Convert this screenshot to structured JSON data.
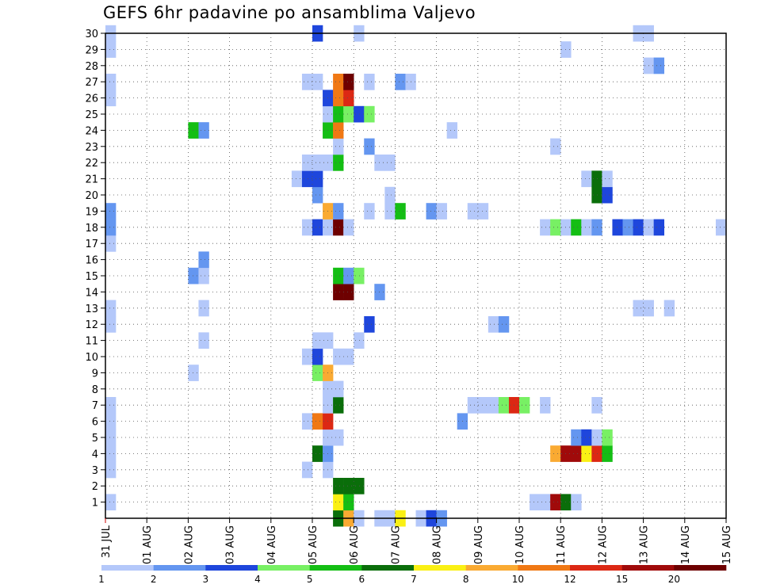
{
  "title": "GEFS 6hr padavine po ansamblima Valjevo",
  "chart_data": {
    "type": "heatmap",
    "title": "GEFS 6hr padavine po ansamblima Valjevo",
    "y_tick_labels": [
      "1",
      "2",
      "3",
      "4",
      "5",
      "6",
      "7",
      "8",
      "9",
      "10",
      "11",
      "12",
      "13",
      "14",
      "15",
      "16",
      "17",
      "18",
      "19",
      "20",
      "21",
      "22",
      "23",
      "24",
      "25",
      "26",
      "27",
      "28",
      "29",
      "30"
    ],
    "x_tick_labels": [
      "31 JUL",
      "01 AUG",
      "02 AUG",
      "03 AUG",
      "04 AUG",
      "05 AUG",
      "06 AUG",
      "07 AUG",
      "08 AUG",
      "09 AUG",
      "10 AUG",
      "11 AUG",
      "12 AUG",
      "13 AUG",
      "14 AUG",
      "15 AUG"
    ],
    "x_range_steps": [
      0,
      60
    ],
    "y_range_members": [
      0,
      30
    ],
    "steps_per_day": 4,
    "grid": true,
    "legend": {
      "placement": "bottom",
      "boundaries": [
        "1",
        "2",
        "3",
        "4",
        "5",
        "6",
        "7",
        "8",
        "10",
        "12",
        "15",
        "20"
      ],
      "colors": [
        "#b4c8fa",
        "#6496f0",
        "#1e46dc",
        "#78f064",
        "#14be14",
        "#0a6e0a",
        "#faf014",
        "#faaa32",
        "#f07814",
        "#dc2814",
        "#a00a0a",
        "#6e0000"
      ]
    },
    "colors": {
      "c1": "#b4c8fa",
      "c2": "#6496f0",
      "c3": "#1e46dc",
      "c4": "#78f064",
      "c5": "#14be14",
      "c6": "#0a6e0a",
      "c7": "#faf014",
      "c8": "#faaa32",
      "c10": "#f07814",
      "c12": "#dc2814",
      "c15": "#a00a0a",
      "c20": "#6e0000"
    },
    "cell_value_note": "cells: [time step index (6h steps from 31 JUL 00z), ensemble member, color class]",
    "cells": [
      [
        0,
        1,
        "c1"
      ],
      [
        0,
        3,
        "c1"
      ],
      [
        0,
        4,
        "c1"
      ],
      [
        0,
        5,
        "c1"
      ],
      [
        0,
        6,
        "c1"
      ],
      [
        0,
        7,
        "c1"
      ],
      [
        0,
        12,
        "c1"
      ],
      [
        0,
        13,
        "c1"
      ],
      [
        0,
        17,
        "c1"
      ],
      [
        0,
        18,
        "c2"
      ],
      [
        0,
        19,
        "c2"
      ],
      [
        0,
        26,
        "c1"
      ],
      [
        0,
        27,
        "c1"
      ],
      [
        0,
        29,
        "c1"
      ],
      [
        0,
        30,
        "c1"
      ],
      [
        8,
        9,
        "c1"
      ],
      [
        8,
        15,
        "c2"
      ],
      [
        8,
        24,
        "c5"
      ],
      [
        9,
        15,
        "c1"
      ],
      [
        9,
        24,
        "c2"
      ],
      [
        9,
        11,
        "c1"
      ],
      [
        9,
        13,
        "c1"
      ],
      [
        9,
        16,
        "c2"
      ],
      [
        18,
        21,
        "c1"
      ],
      [
        19,
        10,
        "c1"
      ],
      [
        19,
        3,
        "c1"
      ],
      [
        19,
        6,
        "c1"
      ],
      [
        19,
        18,
        "c1"
      ],
      [
        19,
        21,
        "c3"
      ],
      [
        19,
        22,
        "c1"
      ],
      [
        19,
        27,
        "c1"
      ],
      [
        20,
        6,
        "c10"
      ],
      [
        20,
        9,
        "c4"
      ],
      [
        20,
        10,
        "c3"
      ],
      [
        20,
        11,
        "c1"
      ],
      [
        20,
        18,
        "c3"
      ],
      [
        20,
        20,
        "c2"
      ],
      [
        20,
        21,
        "c3"
      ],
      [
        20,
        22,
        "c1"
      ],
      [
        20,
        27,
        "c1"
      ],
      [
        20,
        30,
        "c3"
      ],
      [
        20,
        4,
        "c6"
      ],
      [
        21,
        11,
        "c1"
      ],
      [
        21,
        3,
        "c1"
      ],
      [
        21,
        4,
        "c2"
      ],
      [
        21,
        5,
        "c1"
      ],
      [
        21,
        6,
        "c12"
      ],
      [
        21,
        7,
        "c1"
      ],
      [
        21,
        8,
        "c1"
      ],
      [
        21,
        9,
        "c8"
      ],
      [
        21,
        18,
        "c1"
      ],
      [
        21,
        19,
        "c8"
      ],
      [
        21,
        22,
        "c1"
      ],
      [
        21,
        24,
        "c5"
      ],
      [
        21,
        25,
        "c1"
      ],
      [
        21,
        26,
        "c3"
      ],
      [
        22,
        0,
        "c6"
      ],
      [
        22,
        1,
        "c7"
      ],
      [
        22,
        2,
        "c6"
      ],
      [
        22,
        5,
        "c1"
      ],
      [
        22,
        7,
        "c6"
      ],
      [
        22,
        8,
        "c1"
      ],
      [
        22,
        10,
        "c1"
      ],
      [
        22,
        14,
        "c20"
      ],
      [
        22,
        15,
        "c5"
      ],
      [
        22,
        18,
        "c20"
      ],
      [
        22,
        19,
        "c2"
      ],
      [
        22,
        22,
        "c5"
      ],
      [
        22,
        23,
        "c1"
      ],
      [
        22,
        24,
        "c10"
      ],
      [
        22,
        25,
        "c5"
      ],
      [
        22,
        26,
        "c10"
      ],
      [
        22,
        27,
        "c10"
      ],
      [
        23,
        0,
        "c8"
      ],
      [
        23,
        1,
        "c5"
      ],
      [
        23,
        2,
        "c6"
      ],
      [
        23,
        10,
        "c1"
      ],
      [
        23,
        14,
        "c20"
      ],
      [
        23,
        15,
        "c2"
      ],
      [
        23,
        18,
        "c1"
      ],
      [
        23,
        25,
        "c4"
      ],
      [
        23,
        26,
        "c12"
      ],
      [
        23,
        27,
        "c20"
      ],
      [
        24,
        0,
        "c1"
      ],
      [
        24,
        2,
        "c6"
      ],
      [
        24,
        11,
        "c1"
      ],
      [
        24,
        15,
        "c4"
      ],
      [
        24,
        25,
        "c3"
      ],
      [
        24,
        30,
        "c1"
      ],
      [
        25,
        12,
        "c3"
      ],
      [
        25,
        19,
        "c1"
      ],
      [
        25,
        23,
        "c2"
      ],
      [
        25,
        25,
        "c4"
      ],
      [
        25,
        27,
        "c1"
      ],
      [
        26,
        0,
        "c1"
      ],
      [
        26,
        14,
        "c2"
      ],
      [
        26,
        22,
        "c1"
      ],
      [
        27,
        0,
        "c1"
      ],
      [
        27,
        19,
        "c1"
      ],
      [
        27,
        20,
        "c1"
      ],
      [
        27,
        22,
        "c1"
      ],
      [
        28,
        0,
        "c7"
      ],
      [
        28,
        19,
        "c5"
      ],
      [
        28,
        27,
        "c2"
      ],
      [
        29,
        27,
        "c1"
      ],
      [
        30,
        0,
        "c1"
      ],
      [
        31,
        0,
        "c3"
      ],
      [
        31,
        19,
        "c2"
      ],
      [
        32,
        0,
        "c2"
      ],
      [
        32,
        19,
        "c1"
      ],
      [
        33,
        24,
        "c1"
      ],
      [
        34,
        6,
        "c2"
      ],
      [
        35,
        19,
        "c1"
      ],
      [
        35,
        7,
        "c1"
      ],
      [
        36,
        19,
        "c1"
      ],
      [
        36,
        7,
        "c1"
      ],
      [
        37,
        7,
        "c1"
      ],
      [
        37,
        12,
        "c1"
      ],
      [
        38,
        7,
        "c4"
      ],
      [
        38,
        12,
        "c2"
      ],
      [
        39,
        7,
        "c12"
      ],
      [
        40,
        7,
        "c4"
      ],
      [
        41,
        1,
        "c1"
      ],
      [
        42,
        1,
        "c1"
      ],
      [
        42,
        7,
        "c1"
      ],
      [
        42,
        18,
        "c1"
      ],
      [
        43,
        1,
        "c15"
      ],
      [
        43,
        4,
        "c8"
      ],
      [
        43,
        18,
        "c4"
      ],
      [
        43,
        23,
        "c1"
      ],
      [
        44,
        1,
        "c6"
      ],
      [
        44,
        4,
        "c15"
      ],
      [
        44,
        18,
        "c1"
      ],
      [
        44,
        29,
        "c1"
      ],
      [
        45,
        1,
        "c1"
      ],
      [
        45,
        4,
        "c15"
      ],
      [
        45,
        5,
        "c2"
      ],
      [
        45,
        18,
        "c5"
      ],
      [
        46,
        4,
        "c7"
      ],
      [
        46,
        5,
        "c3"
      ],
      [
        46,
        18,
        "c1"
      ],
      [
        46,
        21,
        "c1"
      ],
      [
        47,
        4,
        "c12"
      ],
      [
        47,
        5,
        "c1"
      ],
      [
        47,
        7,
        "c1"
      ],
      [
        47,
        18,
        "c2"
      ],
      [
        47,
        20,
        "c6"
      ],
      [
        47,
        21,
        "c6"
      ],
      [
        48,
        4,
        "c5"
      ],
      [
        48,
        5,
        "c4"
      ],
      [
        48,
        20,
        "c3"
      ],
      [
        48,
        21,
        "c1"
      ],
      [
        49,
        18,
        "c3"
      ],
      [
        50,
        18,
        "c2"
      ],
      [
        51,
        18,
        "c3"
      ],
      [
        51,
        13,
        "c1"
      ],
      [
        51,
        30,
        "c1"
      ],
      [
        52,
        13,
        "c1"
      ],
      [
        52,
        18,
        "c1"
      ],
      [
        52,
        28,
        "c1"
      ],
      [
        52,
        30,
        "c1"
      ],
      [
        53,
        28,
        "c2"
      ],
      [
        54,
        13,
        "c1"
      ],
      [
        53,
        18,
        "c3"
      ],
      [
        59,
        18,
        "c1"
      ]
    ]
  }
}
